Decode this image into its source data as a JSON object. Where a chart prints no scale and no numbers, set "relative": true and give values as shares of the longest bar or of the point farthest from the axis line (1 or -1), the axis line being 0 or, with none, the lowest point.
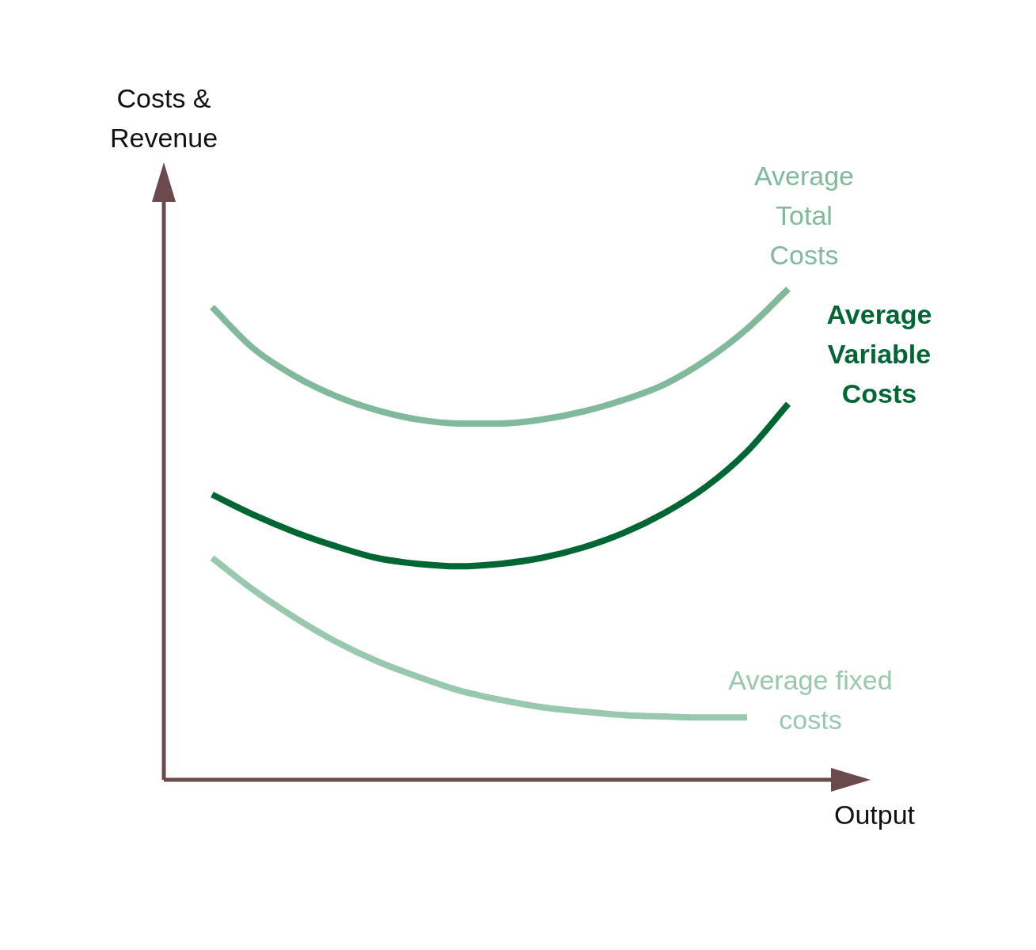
{
  "chart_data": {
    "type": "line",
    "relative": true,
    "annotations": [
      "Costs & Revenue"
    ],
    "xlabel": "Output",
    "legend": false,
    "marker": "none",
    "line_style": "solid",
    "categories": [
      null,
      null,
      null,
      null,
      null,
      null,
      null,
      null,
      null,
      null,
      null,
      null,
      null,
      null,
      null
    ],
    "series": [
      {
        "name": "Average Total Costs",
        "color": "#80b99c",
        "values": [
          0.963,
          0.879,
          0.823,
          0.782,
          0.753,
          0.734,
          0.726,
          0.726,
          0.734,
          0.75,
          0.774,
          0.806,
          0.855,
          0.919,
          1
        ]
      },
      {
        "name": "Average Variable Costs",
        "color": "#006633",
        "values": [
          0.581,
          0.54,
          0.505,
          0.476,
          0.452,
          0.44,
          0.435,
          0.44,
          0.452,
          0.473,
          0.503,
          0.544,
          0.597,
          0.669,
          0.766
        ]
      },
      {
        "name": "Average fixed costs",
        "color": "#98c9ae",
        "values": [
          0.452,
          0.387,
          0.331,
          0.282,
          0.242,
          0.21,
          0.182,
          0.163,
          0.148,
          0.139,
          0.132,
          0.129,
          0.127,
          0.127,
          null
        ]
      }
    ]
  }
}
